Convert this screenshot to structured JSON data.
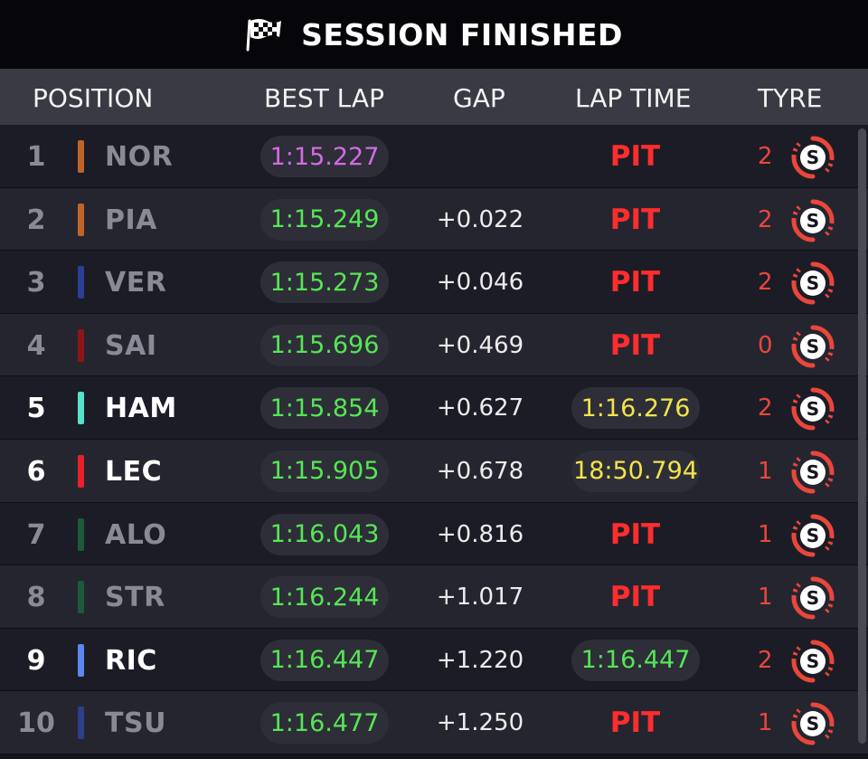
{
  "banner": {
    "title": "SESSION FINISHED",
    "icon": "checkered-flag-icon"
  },
  "columns": {
    "position": "POSITION",
    "best_lap": "BEST LAP",
    "gap": "GAP",
    "lap_time": "LAP TIME",
    "tyre": "TYRE"
  },
  "colors": {
    "fastest": "#d36be6",
    "personal_best": "#55e655",
    "pit": "#ff2d2d",
    "current_lap": "#f2e44a",
    "soft_tyre": "#e9473a"
  },
  "rows": [
    {
      "pos": "1",
      "driver": "NOR",
      "team_color": "#c0652a",
      "best": "1:15.227",
      "best_style": "purple",
      "gap": "",
      "lap": "PIT",
      "lap_style": "pit",
      "tyre_laps": "2",
      "tyre": "S",
      "dim": true
    },
    {
      "pos": "2",
      "driver": "PIA",
      "team_color": "#c0652a",
      "best": "1:15.249",
      "best_style": "green",
      "gap": "+0.022",
      "lap": "PIT",
      "lap_style": "pit",
      "tyre_laps": "2",
      "tyre": "S",
      "dim": true
    },
    {
      "pos": "3",
      "driver": "VER",
      "team_color": "#2b3f95",
      "best": "1:15.273",
      "best_style": "green",
      "gap": "+0.046",
      "lap": "PIT",
      "lap_style": "pit",
      "tyre_laps": "2",
      "tyre": "S",
      "dim": true
    },
    {
      "pos": "4",
      "driver": "SAI",
      "team_color": "#8c1616",
      "best": "1:15.696",
      "best_style": "green",
      "gap": "+0.469",
      "lap": "PIT",
      "lap_style": "pit",
      "tyre_laps": "0",
      "tyre": "S",
      "dim": true
    },
    {
      "pos": "5",
      "driver": "HAM",
      "team_color": "#57e1c8",
      "best": "1:15.854",
      "best_style": "green",
      "gap": "+0.627",
      "lap": "1:16.276",
      "lap_style": "yellow",
      "tyre_laps": "2",
      "tyre": "S",
      "dim": false
    },
    {
      "pos": "6",
      "driver": "LEC",
      "team_color": "#e8202a",
      "best": "1:15.905",
      "best_style": "green",
      "gap": "+0.678",
      "lap": "18:50.794",
      "lap_style": "yellow",
      "tyre_laps": "1",
      "tyre": "S",
      "dim": false
    },
    {
      "pos": "7",
      "driver": "ALO",
      "team_color": "#1c5a3c",
      "best": "1:16.043",
      "best_style": "green",
      "gap": "+0.816",
      "lap": "PIT",
      "lap_style": "pit",
      "tyre_laps": "1",
      "tyre": "S",
      "dim": true
    },
    {
      "pos": "8",
      "driver": "STR",
      "team_color": "#1c5a3c",
      "best": "1:16.244",
      "best_style": "green",
      "gap": "+1.017",
      "lap": "PIT",
      "lap_style": "pit",
      "tyre_laps": "1",
      "tyre": "S",
      "dim": true
    },
    {
      "pos": "9",
      "driver": "RIC",
      "team_color": "#5b87ee",
      "best": "1:16.447",
      "best_style": "green",
      "gap": "+1.220",
      "lap": "1:16.447",
      "lap_style": "green",
      "tyre_laps": "2",
      "tyre": "S",
      "dim": false
    },
    {
      "pos": "10",
      "driver": "TSU",
      "team_color": "#2c3f8a",
      "best": "1:16.477",
      "best_style": "green",
      "gap": "+1.250",
      "lap": "PIT",
      "lap_style": "pit",
      "tyre_laps": "1",
      "tyre": "S",
      "dim": true
    }
  ]
}
